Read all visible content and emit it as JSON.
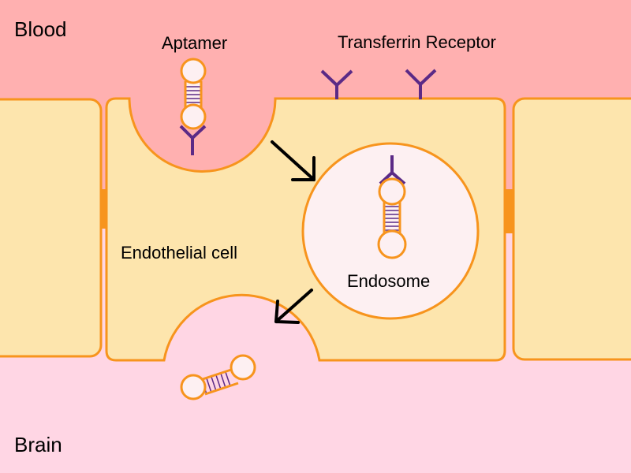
{
  "labels": {
    "blood": "Blood",
    "brain": "Brain",
    "aptamer": "Aptamer",
    "transferrin_receptor": "Transferrin Receptor",
    "endothelial_cell": "Endothelial cell",
    "endosome": "Endosome"
  },
  "colors": {
    "blood": "#ffb0b0",
    "brain": "#ffd6e4",
    "cell_fill": "#fde5ad",
    "cell_outline": "#f7941d",
    "endosome_fill": "#fdf0f2",
    "receptor": "#5b2a86",
    "aptamer_rungs": "#5b2a86",
    "arrow": "#000000"
  }
}
